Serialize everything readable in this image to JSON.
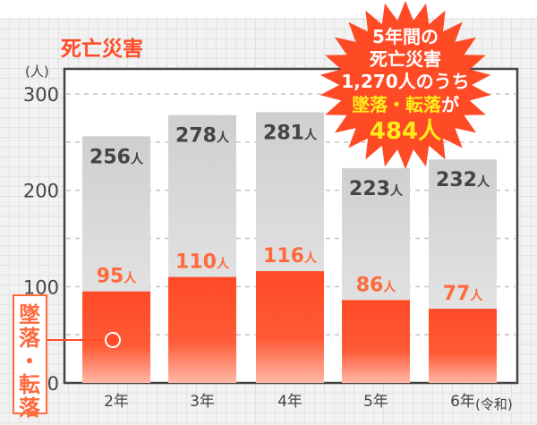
{
  "chart_data": {
    "type": "bar",
    "title": "死亡災害",
    "ylabel": "(人)",
    "xlabel_suffix": "(令和)",
    "categories": [
      "2年",
      "3年",
      "4年",
      "5年",
      "6年"
    ],
    "series": [
      {
        "name": "total",
        "values": [
          256,
          278,
          281,
          223,
          232
        ],
        "labels": [
          "256",
          "278",
          "281",
          "223",
          "232"
        ]
      },
      {
        "name": "墜落・転落",
        "values": [
          95,
          110,
          116,
          86,
          77
        ],
        "labels": [
          "95",
          "110",
          "116",
          "86",
          "77"
        ]
      }
    ],
    "unit": "人",
    "ylim": [
      0,
      300
    ],
    "yticks": [
      "0",
      "100",
      "200",
      "300"
    ],
    "grid": true,
    "legend": {
      "label": "墜落・転落",
      "placement": "left"
    },
    "colors": {
      "total": "#d0d0d0",
      "fall": "#ff4a26",
      "label_total": "#444444",
      "label_fall": "#ff6a3c",
      "title": "#ff4a26"
    },
    "callout": {
      "lines": [
        "5年間の",
        "死亡災害",
        "1,270人のうち"
      ],
      "highlight_line": "墜落・転落",
      "highlight_suffix": "が",
      "highlight_total": "484人",
      "fill": "#ff4a26",
      "text_color": "#ffffff",
      "highlight_color": "#ffec1a"
    }
  }
}
